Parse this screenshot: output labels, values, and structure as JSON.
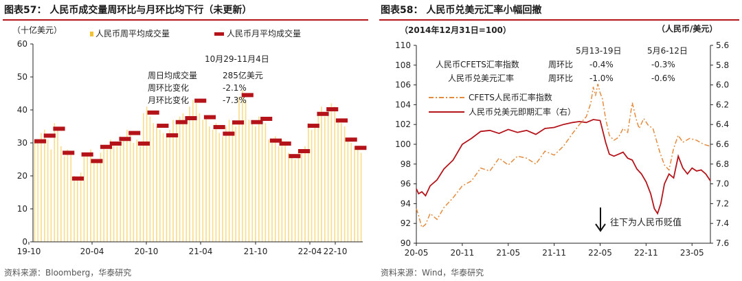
{
  "colors": {
    "red": "#b5131a",
    "gold": "#f2c232",
    "orange": "#e58a3c",
    "tick": "#222222"
  },
  "chart_data": [
    {
      "id": "chart57",
      "type": "bar",
      "title": "图表57： 人民币成交量周环比与月环比均下行（未更新）",
      "unit_label": "（十亿美元）",
      "legend": {
        "weekly": "人民币周平均成交量",
        "monthly": "人民币月平均成交量",
        "position": "top"
      },
      "ylim": [
        0,
        60
      ],
      "yticks": [
        "0",
        "10",
        "20",
        "30",
        "40",
        "50",
        "60"
      ],
      "xticks": [
        "19-10",
        "20-04",
        "20-10",
        "21-04",
        "21-10",
        "22-04",
        "22-10"
      ],
      "monthly_values": [
        30.5,
        32.2,
        34.3,
        27.0,
        19.2,
        26.5,
        24.5,
        28.8,
        29.8,
        31.2,
        33.0,
        29.8,
        39.2,
        35.2,
        32.3,
        36.3,
        37.5,
        42.8,
        37.8,
        34.8,
        32.8,
        36.2,
        44.5,
        36.3,
        37.3,
        30.7,
        29.8,
        26.0,
        27.5,
        35.2,
        38.8,
        40.2,
        36.8,
        31.0,
        28.5
      ],
      "weekly_values": [
        31,
        30,
        33,
        34,
        31,
        28,
        36,
        34,
        29,
        26,
        28,
        27,
        20,
        19,
        21,
        27,
        26,
        28,
        24,
        25,
        27,
        29,
        28,
        31,
        30,
        29,
        32,
        31,
        34,
        33,
        30,
        31,
        29,
        39,
        41,
        38,
        36,
        35,
        34,
        33,
        32,
        34,
        37,
        36,
        38,
        39,
        37,
        41,
        43,
        42,
        39,
        37,
        38,
        35,
        34,
        36,
        33,
        32,
        35,
        37,
        36,
        35,
        44,
        46,
        43,
        37,
        36,
        35,
        38,
        37,
        36,
        31,
        30,
        32,
        29,
        31,
        30,
        27,
        26,
        25,
        28,
        27,
        29,
        36,
        34,
        35,
        39,
        41,
        38,
        40,
        42,
        41,
        37,
        36,
        35,
        31,
        30,
        29,
        28,
        27
      ],
      "annotation": {
        "date": "10月29-11月4日",
        "rows": [
          {
            "label": "周日均成交量",
            "value": "285亿美元"
          },
          {
            "label": "周环比变化",
            "value": "-2.1%"
          },
          {
            "label": "月环比变化",
            "value": "-7.3%"
          }
        ]
      },
      "source": "资料来源：Bloomberg，华泰研究"
    },
    {
      "id": "chart58",
      "type": "line",
      "title": "图表58： 人民币兑美元汇率小幅回撤",
      "left_unit_label": "（2014年12月31日=100）",
      "right_unit_label": "（人民币/美元）",
      "legend": {
        "cfets": "CFETS人民币汇率指数",
        "usdcny": "人民币兑美元即期汇率（右）"
      },
      "ylim_left": [
        90,
        110
      ],
      "yticks_left": [
        "90",
        "92",
        "94",
        "96",
        "98",
        "100",
        "102",
        "104",
        "106",
        "108",
        "110"
      ],
      "ylim_right_top_to_bottom": [
        5.6,
        7.6
      ],
      "yticks_right": [
        "5.6",
        "5.8",
        "6.0",
        "6.2",
        "6.4",
        "6.6",
        "6.8",
        "7.0",
        "7.2",
        "7.4",
        "7.6"
      ],
      "xticks": [
        "20-05",
        "20-11",
        "21-05",
        "21-11",
        "22-05",
        "22-11",
        "23-05"
      ],
      "cfets_series": [
        [
          0,
          93.5
        ],
        [
          0.05,
          92.8
        ],
        [
          0.12,
          91.6
        ],
        [
          0.2,
          91.9
        ],
        [
          0.3,
          93.0
        ],
        [
          0.45,
          92.4
        ],
        [
          0.6,
          93.6
        ],
        [
          0.8,
          94.6
        ],
        [
          1.0,
          95.8
        ],
        [
          1.2,
          96.3
        ],
        [
          1.4,
          97.6
        ],
        [
          1.6,
          97.3
        ],
        [
          1.8,
          98.6
        ],
        [
          2.0,
          97.9
        ],
        [
          2.2,
          98.8
        ],
        [
          2.4,
          98.6
        ],
        [
          2.6,
          98.0
        ],
        [
          2.8,
          99.3
        ],
        [
          3.0,
          98.9
        ],
        [
          3.2,
          99.8
        ],
        [
          3.4,
          101.1
        ],
        [
          3.55,
          102.0
        ],
        [
          3.7,
          102.8
        ],
        [
          3.8,
          104.2
        ],
        [
          3.85,
          105.8
        ],
        [
          3.9,
          104.9
        ],
        [
          3.95,
          106.1
        ],
        [
          4.0,
          105.2
        ],
        [
          4.05,
          104.6
        ],
        [
          4.12,
          102.6
        ],
        [
          4.2,
          100.9
        ],
        [
          4.3,
          100.4
        ],
        [
          4.4,
          100.7
        ],
        [
          4.5,
          101.6
        ],
        [
          4.6,
          101.2
        ],
        [
          4.7,
          104.2
        ],
        [
          4.78,
          102.6
        ],
        [
          4.85,
          101.6
        ],
        [
          4.95,
          102.6
        ],
        [
          5.05,
          101.9
        ],
        [
          5.15,
          101.6
        ],
        [
          5.3,
          99.2
        ],
        [
          5.4,
          97.9
        ],
        [
          5.5,
          97.4
        ],
        [
          5.6,
          99.6
        ],
        [
          5.7,
          100.9
        ],
        [
          5.8,
          100.2
        ],
        [
          5.95,
          100.6
        ],
        [
          6.1,
          100.4
        ],
        [
          6.25,
          100.0
        ],
        [
          6.4,
          99.8
        ]
      ],
      "usdcny_series": [
        [
          0,
          7.05
        ],
        [
          0.05,
          7.1
        ],
        [
          0.12,
          7.08
        ],
        [
          0.2,
          7.12
        ],
        [
          0.3,
          7.02
        ],
        [
          0.45,
          6.96
        ],
        [
          0.6,
          6.85
        ],
        [
          0.8,
          6.76
        ],
        [
          1.0,
          6.6
        ],
        [
          1.2,
          6.54
        ],
        [
          1.4,
          6.47
        ],
        [
          1.6,
          6.46
        ],
        [
          1.8,
          6.49
        ],
        [
          2.0,
          6.45
        ],
        [
          2.2,
          6.48
        ],
        [
          2.4,
          6.46
        ],
        [
          2.6,
          6.5
        ],
        [
          2.8,
          6.44
        ],
        [
          3.0,
          6.43
        ],
        [
          3.2,
          6.4
        ],
        [
          3.4,
          6.38
        ],
        [
          3.55,
          6.37
        ],
        [
          3.7,
          6.38
        ],
        [
          3.85,
          6.35
        ],
        [
          4.0,
          6.36
        ],
        [
          4.05,
          6.45
        ],
        [
          4.12,
          6.58
        ],
        [
          4.2,
          6.7
        ],
        [
          4.3,
          6.72
        ],
        [
          4.4,
          6.7
        ],
        [
          4.5,
          6.68
        ],
        [
          4.6,
          6.74
        ],
        [
          4.7,
          6.76
        ],
        [
          4.8,
          6.85
        ],
        [
          4.9,
          6.9
        ],
        [
          5.0,
          6.98
        ],
        [
          5.1,
          7.1
        ],
        [
          5.18,
          7.25
        ],
        [
          5.25,
          7.3
        ],
        [
          5.32,
          7.2
        ],
        [
          5.4,
          7.0
        ],
        [
          5.5,
          6.9
        ],
        [
          5.6,
          6.94
        ],
        [
          5.7,
          6.72
        ],
        [
          5.8,
          6.84
        ],
        [
          5.9,
          6.9
        ],
        [
          6.0,
          6.84
        ],
        [
          6.1,
          6.87
        ],
        [
          6.2,
          6.86
        ],
        [
          6.3,
          6.9
        ],
        [
          6.4,
          6.97
        ]
      ],
      "table": {
        "col1": "5月13-19日",
        "col2": "5月6-12日",
        "rows": [
          {
            "label": "人民币CFETS汇率指数",
            "name": "周环比",
            "v1": "-0.4%",
            "v2": "-0.3%"
          },
          {
            "label": "人民币兑美元汇率",
            "name": "周环比",
            "v1": "-1.0%",
            "v2": "-0.6%"
          }
        ]
      },
      "arrow_note": "往下为人民币贬值",
      "source": "资料来源：Wind，华泰研究"
    }
  ]
}
